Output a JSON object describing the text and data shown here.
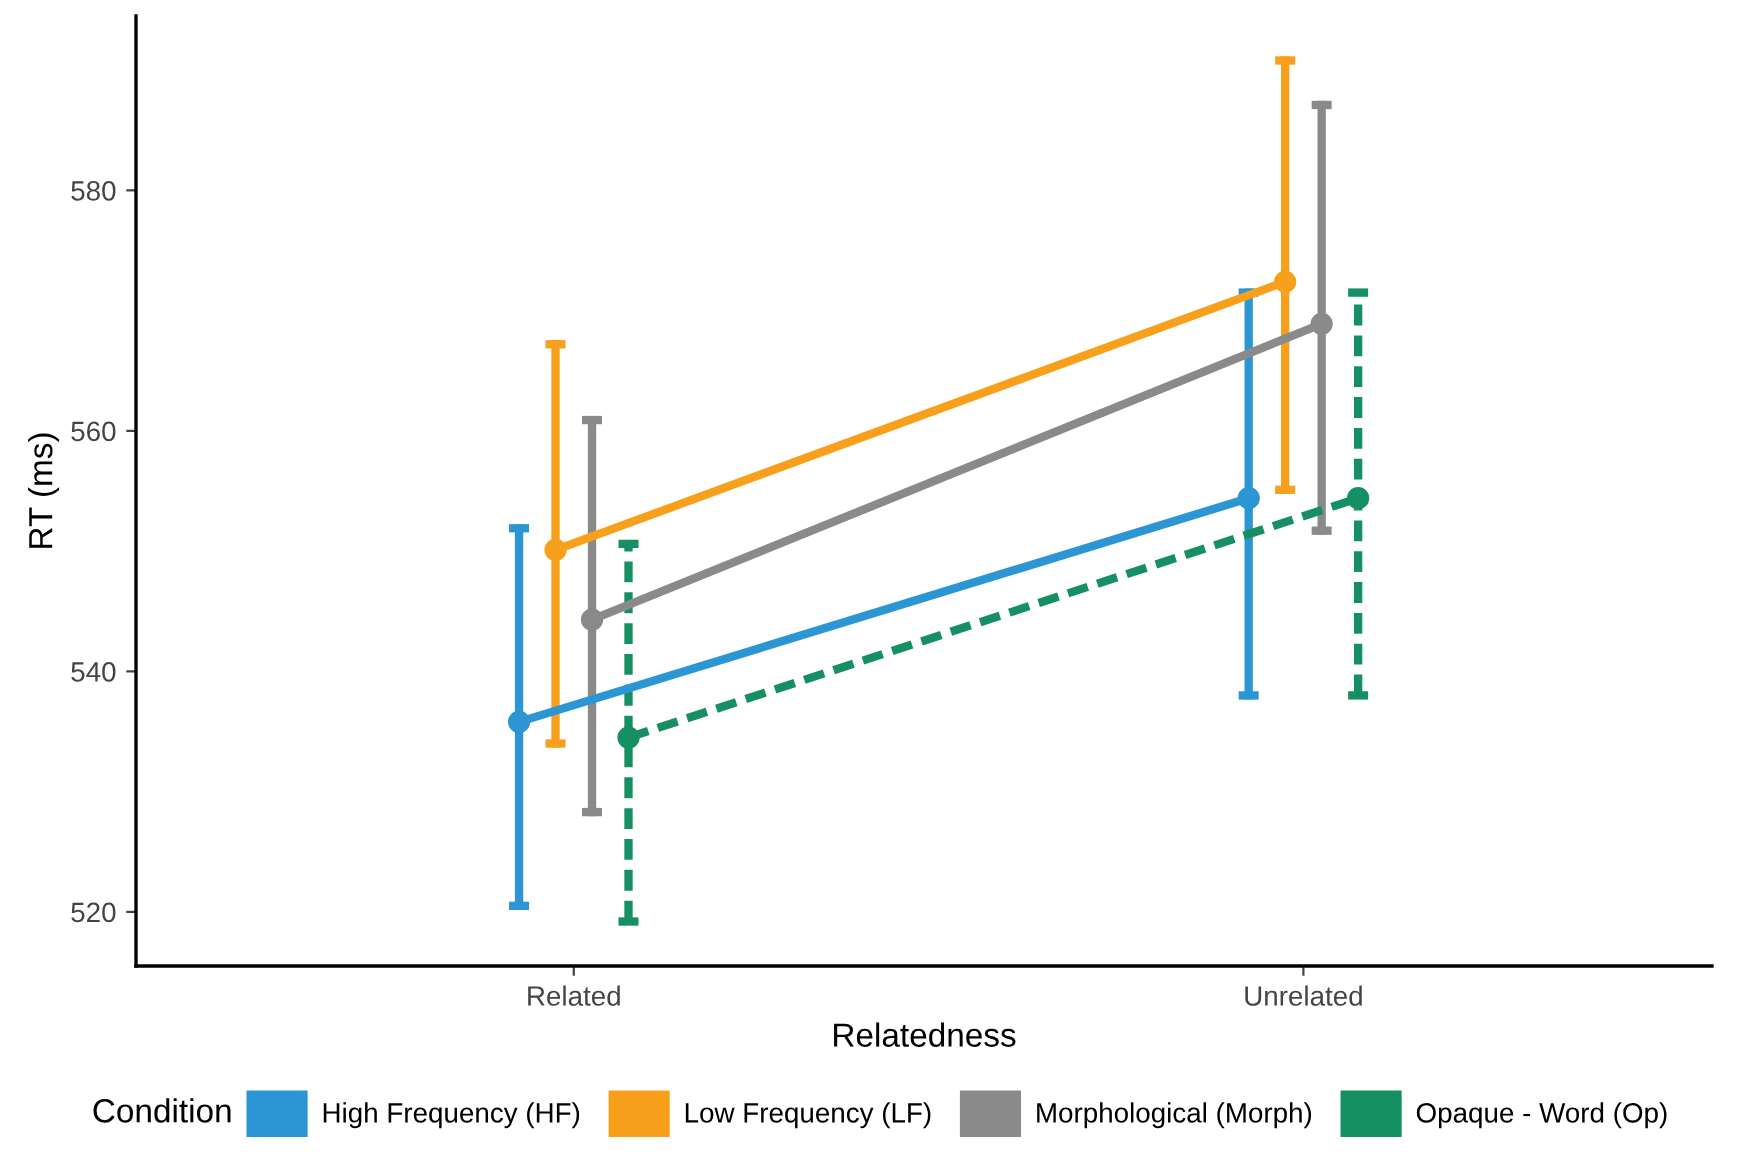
{
  "chart_data": {
    "type": "line",
    "xlabel": "Relatedness",
    "ylabel": "RT (ms)",
    "legend_title": "Condition",
    "categories": [
      "Related",
      "Unrelated"
    ],
    "ylim": [
      515.5,
      594.5
    ],
    "yticks": [
      520,
      540,
      560,
      580
    ],
    "grid": false,
    "legend": "bottom",
    "marker": "circle",
    "series": [
      {
        "name": "High Frequency (HF)",
        "color": "#2b96d3",
        "values": [
          535.8,
          554.4
        ],
        "errors": [
          [
            520.5,
            551.9
          ],
          [
            538.0,
            571.5
          ]
        ],
        "line_style": "solid"
      },
      {
        "name": "Low Frequency (LF)",
        "color": "#f8a01b",
        "values": [
          550.1,
          572.4
        ],
        "errors": [
          [
            534.0,
            567.2
          ],
          [
            555.1,
            590.8
          ]
        ],
        "line_style": "solid"
      },
      {
        "name": "Morphological (Morph)",
        "color": "#8a8a8a",
        "values": [
          544.3,
          568.9
        ],
        "errors": [
          [
            528.3,
            560.9
          ],
          [
            551.7,
            587.1
          ]
        ],
        "line_style": "solid"
      },
      {
        "name": "Opaque - Word (Op)",
        "color": "#168f63",
        "values": [
          534.5,
          554.4
        ],
        "errors": [
          [
            519.2,
            550.6
          ],
          [
            538.0,
            571.5
          ]
        ],
        "line_style": "dashed"
      }
    ]
  }
}
